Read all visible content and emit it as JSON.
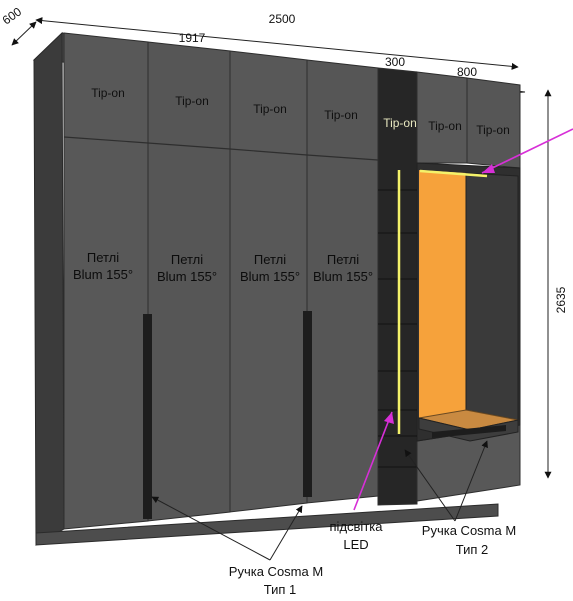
{
  "dimensions": {
    "depth": "600",
    "total_width": "2500",
    "section_left": "1917",
    "section_mid": "300",
    "section_right": "800",
    "height": "2635"
  },
  "top_labels": {
    "door1": "Tip-on",
    "door2": "Tip-on",
    "door3": "Tip-on",
    "door4": "Tip-on",
    "niche": "Tip-on",
    "door5": "Tip-on",
    "door6": "Tip-on"
  },
  "hinges": {
    "line1": "Петлі",
    "line2": "Blum 155°"
  },
  "callouts": {
    "led_line1": "підсвітка",
    "led_line2": "LED",
    "handle2_line1": "Ручка Cosma M",
    "handle2_line2": "Тип 2",
    "handle1_line1": "Ручка Cosma M",
    "handle1_line2": "Тип 1"
  },
  "colors": {
    "panel": "#545454",
    "panel_dark": "#3e3e3e",
    "niche": "#2a2a2a",
    "led": "#f4f26a",
    "orange": "#f6a23b",
    "arrow": "#d72fd7"
  }
}
